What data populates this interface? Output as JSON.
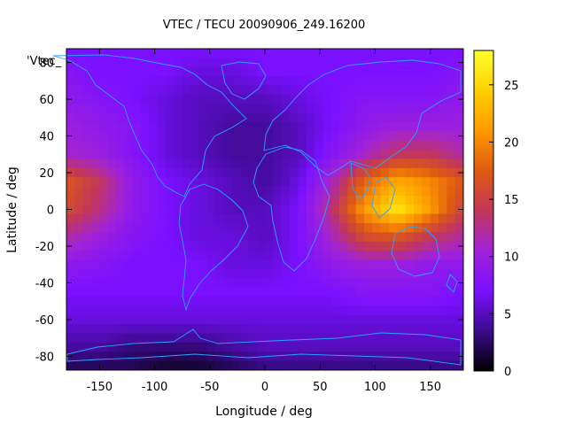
{
  "chart_data": {
    "type": "heatmap",
    "title": "VTEC / TECU 20090906_249.16200",
    "xlabel": "Longitude / deg",
    "ylabel": "Latitude / deg",
    "series_label": "'Vtec_",
    "xlim": [
      -180,
      180
    ],
    "ylim": [
      -87.5,
      87.5
    ],
    "xticks": [
      -150,
      -100,
      -50,
      0,
      50,
      100,
      150
    ],
    "yticks": [
      -80,
      -60,
      -40,
      -20,
      0,
      20,
      40,
      60,
      80
    ],
    "colorbar": {
      "min": 0,
      "max": 28,
      "ticks": [
        0,
        5,
        10,
        15,
        20,
        25
      ]
    },
    "grid_lon": [
      -180,
      -150,
      -120,
      -90,
      -60,
      -30,
      0,
      30,
      60,
      90,
      120,
      150,
      180
    ],
    "grid_lat": [
      87.5,
      75,
      60,
      45,
      30,
      15,
      0,
      -15,
      -30,
      -45,
      -60,
      -75,
      -87.5
    ],
    "values": [
      [
        7,
        7,
        7,
        7,
        7,
        7,
        7,
        7,
        7,
        7,
        7,
        7,
        7
      ],
      [
        8,
        7,
        7,
        7,
        6,
        6,
        7,
        7,
        7,
        7,
        7,
        7,
        8
      ],
      [
        9,
        8,
        7,
        6,
        5,
        5,
        5,
        6,
        7,
        8,
        8,
        8,
        9
      ],
      [
        10,
        9,
        8,
        6,
        5,
        4,
        4,
        5,
        7,
        9,
        10,
        10,
        10
      ],
      [
        11,
        10,
        8,
        6,
        5,
        4,
        4,
        5,
        8,
        11,
        14,
        14,
        12
      ],
      [
        17,
        14,
        9,
        7,
        6,
        5,
        4,
        6,
        11,
        18,
        22,
        20,
        17
      ],
      [
        16,
        13,
        9,
        7,
        6,
        5,
        5,
        7,
        13,
        21,
        26,
        21,
        15
      ],
      [
        12,
        10,
        8,
        7,
        6,
        6,
        5,
        7,
        11,
        16,
        17,
        14,
        12
      ],
      [
        9,
        8,
        7,
        7,
        7,
        6,
        6,
        7,
        9,
        10,
        10,
        9,
        9
      ],
      [
        7,
        7,
        7,
        7,
        7,
        7,
        7,
        7,
        7,
        8,
        8,
        8,
        7
      ],
      [
        6,
        6,
        6,
        6,
        6,
        6,
        6,
        6,
        6,
        6,
        6,
        6,
        6
      ],
      [
        4,
        4,
        3,
        3,
        3,
        4,
        5,
        5,
        5,
        5,
        5,
        5,
        5
      ],
      [
        2,
        2,
        2,
        1,
        1,
        2,
        3,
        3,
        3,
        3,
        3,
        3,
        3
      ]
    ],
    "coastline_color": "#2aa3ff",
    "colormap": [
      "#000000",
      "#3b0a8c",
      "#7a10ff",
      "#a022d8",
      "#c2375a",
      "#de5a10",
      "#ff9a00",
      "#ffd000",
      "#ffff30"
    ]
  }
}
